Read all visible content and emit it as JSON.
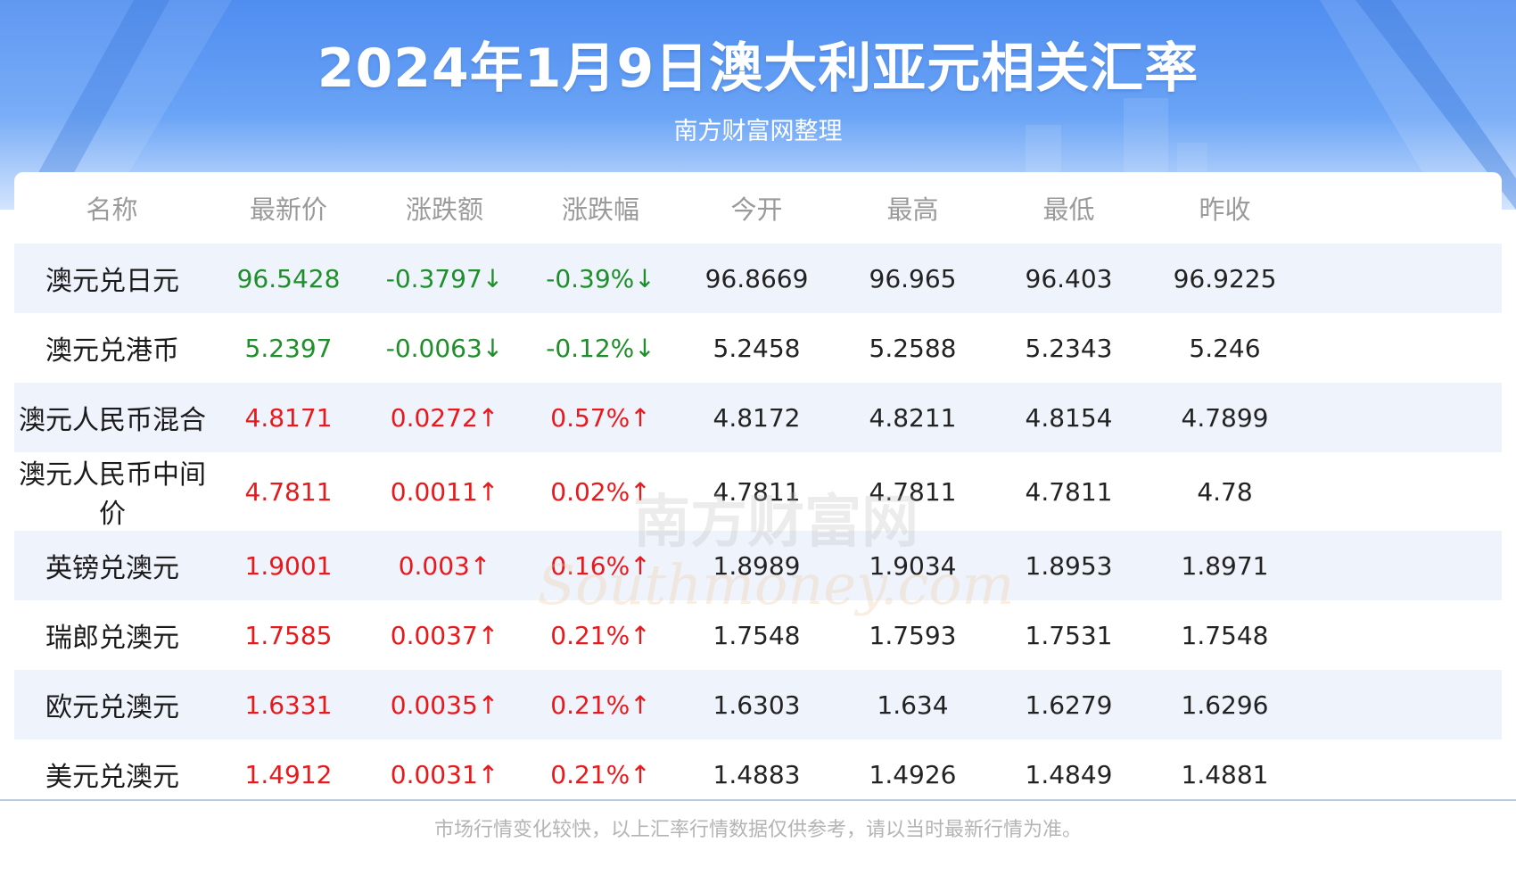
{
  "header": {
    "title": "2024年1月9日澳大利亚元相关汇率",
    "subtitle": "南方财富网整理"
  },
  "watermark": {
    "line1": "南方财富网",
    "line2": "Southmoney.com"
  },
  "colors": {
    "up": "#e8191c",
    "down": "#1e8f2a",
    "header_blue": "#4f8df0",
    "stripe": "#eef3fc"
  },
  "footnote": "市场行情变化较快，以上汇率行情数据仅供参考，请以当时最新行情为准。",
  "chart_data": {
    "type": "table",
    "columns": [
      "名称",
      "最新价",
      "涨跌额",
      "涨跌幅",
      "今开",
      "最高",
      "最低",
      "昨收"
    ],
    "rows": [
      {
        "name": "澳元兑日元",
        "latest": "96.5428",
        "change": "-0.3797↓",
        "pct": "-0.39%↓",
        "open": "96.8669",
        "high": "96.965",
        "low": "96.403",
        "prev": "96.9225",
        "dir": "down"
      },
      {
        "name": "澳元兑港币",
        "latest": "5.2397",
        "change": "-0.0063↓",
        "pct": "-0.12%↓",
        "open": "5.2458",
        "high": "5.2588",
        "low": "5.2343",
        "prev": "5.246",
        "dir": "down"
      },
      {
        "name": "澳元人民币混合",
        "latest": "4.8171",
        "change": "0.0272↑",
        "pct": "0.57%↑",
        "open": "4.8172",
        "high": "4.8211",
        "low": "4.8154",
        "prev": "4.7899",
        "dir": "up"
      },
      {
        "name": "澳元人民币中间价",
        "latest": "4.7811",
        "change": "0.0011↑",
        "pct": "0.02%↑",
        "open": "4.7811",
        "high": "4.7811",
        "low": "4.7811",
        "prev": "4.78",
        "dir": "up"
      },
      {
        "name": "英镑兑澳元",
        "latest": "1.9001",
        "change": "0.003↑",
        "pct": "0.16%↑",
        "open": "1.8989",
        "high": "1.9034",
        "low": "1.8953",
        "prev": "1.8971",
        "dir": "up"
      },
      {
        "name": "瑞郎兑澳元",
        "latest": "1.7585",
        "change": "0.0037↑",
        "pct": "0.21%↑",
        "open": "1.7548",
        "high": "1.7593",
        "low": "1.7531",
        "prev": "1.7548",
        "dir": "up"
      },
      {
        "name": "欧元兑澳元",
        "latest": "1.6331",
        "change": "0.0035↑",
        "pct": "0.21%↑",
        "open": "1.6303",
        "high": "1.634",
        "low": "1.6279",
        "prev": "1.6296",
        "dir": "up"
      },
      {
        "name": "美元兑澳元",
        "latest": "1.4912",
        "change": "0.0031↑",
        "pct": "0.21%↑",
        "open": "1.4883",
        "high": "1.4926",
        "low": "1.4849",
        "prev": "1.4881",
        "dir": "up"
      }
    ]
  }
}
